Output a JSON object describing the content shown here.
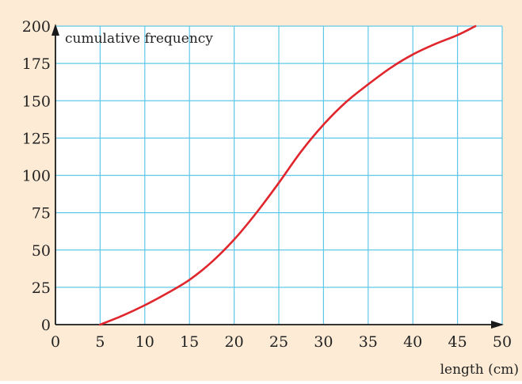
{
  "chart_data": {
    "type": "line",
    "ylabel": "cumulative frequency",
    "xlabel": "length (cm)",
    "xlim": [
      0,
      50
    ],
    "ylim": [
      0,
      200
    ],
    "x_ticks": [
      "0",
      "5",
      "10",
      "15",
      "20",
      "25",
      "30",
      "35",
      "40",
      "45",
      "50"
    ],
    "y_ticks": [
      "0",
      "25",
      "50",
      "75",
      "100",
      "125",
      "150",
      "175",
      "200"
    ],
    "grid": true,
    "series": [
      {
        "color": "#e0262c",
        "x": [
          5,
          7.5,
          10,
          12.5,
          15,
          17.5,
          20,
          22.5,
          25,
          27.5,
          30,
          32.5,
          35,
          37.5,
          40,
          42.5,
          45,
          47
        ],
        "y": [
          0,
          6,
          13,
          21,
          30,
          42,
          57,
          75,
          95,
          116,
          134,
          149,
          161,
          172,
          181,
          188,
          194,
          200
        ]
      }
    ]
  },
  "colors": {
    "page_background": "#fdebd6",
    "plot_background": "#ffffff",
    "grid": "#5fc8e8",
    "axis": "#1a1a1a",
    "curve": "#e0262c"
  }
}
